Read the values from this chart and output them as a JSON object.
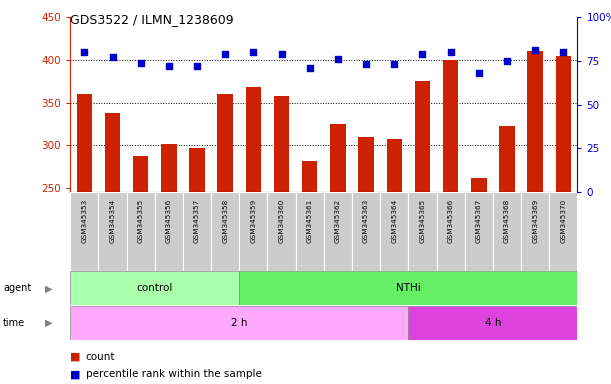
{
  "title": "GDS3522 / ILMN_1238609",
  "samples": [
    "GSM345353",
    "GSM345354",
    "GSM345355",
    "GSM345356",
    "GSM345357",
    "GSM345358",
    "GSM345359",
    "GSM345360",
    "GSM345361",
    "GSM345362",
    "GSM345363",
    "GSM345364",
    "GSM345365",
    "GSM345366",
    "GSM345367",
    "GSM345368",
    "GSM345369",
    "GSM345370"
  ],
  "counts": [
    360,
    338,
    287,
    301,
    297,
    360,
    368,
    358,
    281,
    325,
    310,
    307,
    375,
    400,
    262,
    322,
    410,
    405
  ],
  "percentile_ranks": [
    80,
    77,
    74,
    72,
    72,
    79,
    80,
    79,
    71,
    76,
    73,
    73,
    79,
    80,
    68,
    75,
    81,
    80
  ],
  "ylim_left": [
    245,
    450
  ],
  "ylim_right": [
    0,
    100
  ],
  "yticks_left": [
    250,
    300,
    350,
    400,
    450
  ],
  "yticks_right": [
    0,
    25,
    50,
    75,
    100
  ],
  "bar_color": "#cc2200",
  "dot_color": "#0000cc",
  "background_color": "#ffffff",
  "control_color": "#aaffaa",
  "nthi_color": "#66ee66",
  "time2h_color": "#ffaaff",
  "time4h_color": "#dd44dd",
  "tick_bg_color": "#cccccc",
  "legend_count_label": "count",
  "legend_pct_label": "percentile rank within the sample",
  "n_control": 6,
  "n_time2h": 12
}
